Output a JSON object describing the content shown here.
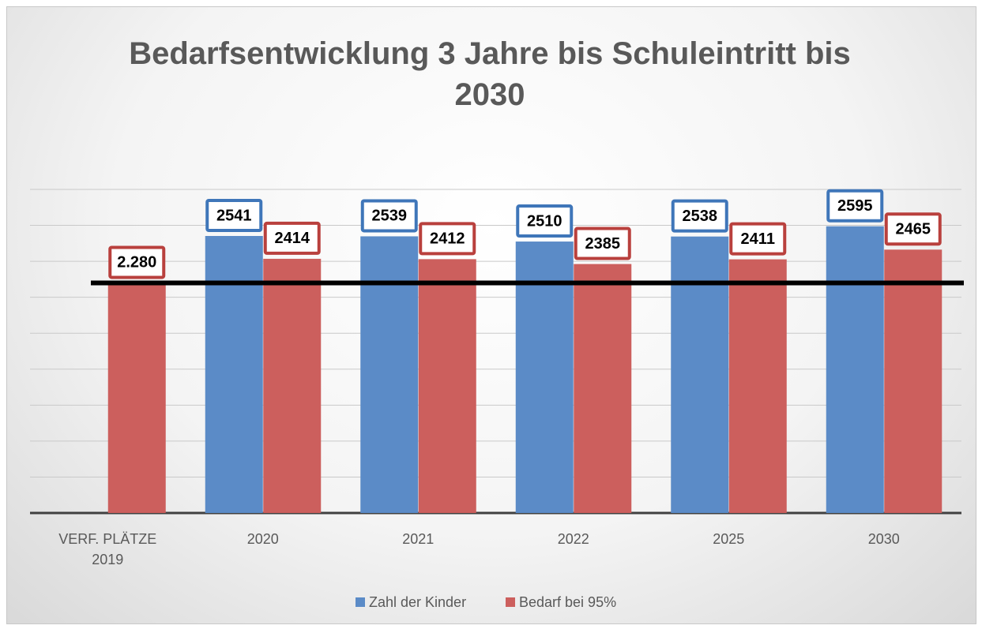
{
  "chart_data": {
    "type": "bar",
    "title": "Bedarfsentwicklung 3 Jahre bis Schuleintritt bis 2030",
    "categories": [
      "VERF. PLÄTZE 2019",
      "2020",
      "2021",
      "2022",
      "2025",
      "2030"
    ],
    "series": [
      {
        "name": "Zahl der Kinder",
        "color": "#5b8bc7",
        "label_border": "#3f76b9",
        "values": [
          null,
          2541,
          2539,
          2510,
          2538,
          2595
        ]
      },
      {
        "name": "Bedarf bei 95%",
        "color": "#cc5f5d",
        "label_border": "#b9403d",
        "values": [
          2280,
          2414,
          2412,
          2385,
          2411,
          2465
        ],
        "value_labels": [
          "2.280",
          "2414",
          "2412",
          "2385",
          "2411",
          "2465"
        ]
      }
    ],
    "ylim": [
      1000,
      2800
    ],
    "yticks": [
      1000,
      1200,
      1400,
      1600,
      1800,
      2000,
      2200,
      2400,
      2600,
      2800
    ],
    "grid": true,
    "reference_line": 2280,
    "legend": "bottom"
  }
}
